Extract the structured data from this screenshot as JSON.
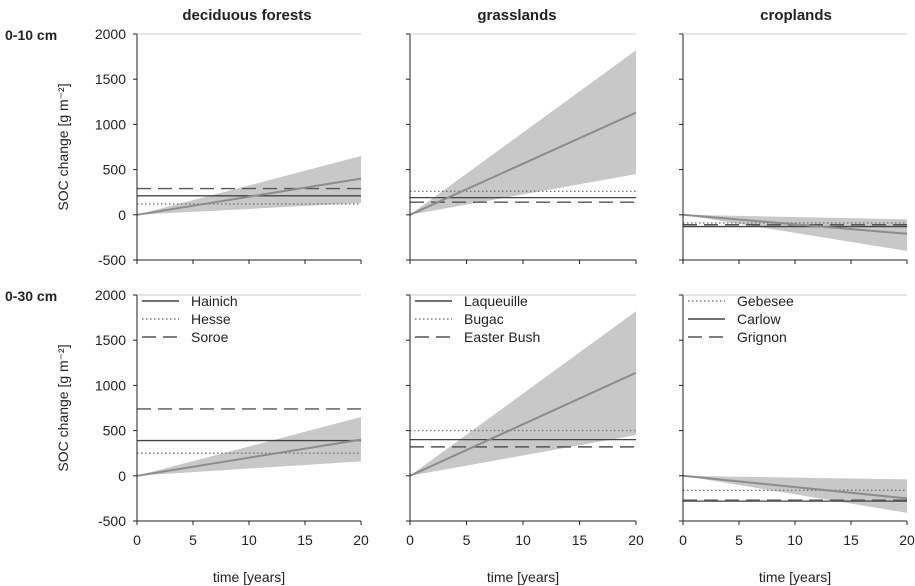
{
  "figure": {
    "column_titles": [
      "deciduous forests",
      "grasslands",
      "croplands"
    ],
    "row_labels": [
      "0-10 cm",
      "0-30 cm"
    ],
    "ylabel": "SOC change [g m⁻²]",
    "xlabel": "time [years]"
  },
  "colors": {
    "band": "#c8c8c8",
    "trend": "#8c8c8c",
    "solid": "#444444",
    "dashed": "#555555",
    "dotted": "#777777",
    "axis": "#222222"
  },
  "chart_data": [
    {
      "type": "line",
      "panel": "deciduous-forests-0-10",
      "title": "deciduous forests",
      "row": "0-10 cm",
      "xlabel": "",
      "ylabel": "SOC change [g m⁻²]",
      "xlim": [
        0,
        20
      ],
      "ylim": [
        -500,
        2000
      ],
      "xticks": [],
      "yticks": [
        -500,
        0,
        500,
        1000,
        1500,
        2000
      ],
      "trend": {
        "x": [
          0,
          20
        ],
        "y": [
          0,
          400
        ]
      },
      "band": {
        "x": [
          0,
          20
        ],
        "lower": [
          0,
          130
        ],
        "upper": [
          0,
          650
        ]
      },
      "sites": [
        {
          "name": "Hainich",
          "style": "solid",
          "value": 210
        },
        {
          "name": "Hesse",
          "style": "dotted",
          "value": 120
        },
        {
          "name": "Soroe",
          "style": "dashed",
          "value": 290
        }
      ],
      "legend": false
    },
    {
      "type": "line",
      "panel": "grasslands-0-10",
      "title": "grasslands",
      "row": "0-10 cm",
      "xlabel": "",
      "ylabel": "",
      "xlim": [
        0,
        20
      ],
      "ylim": [
        -500,
        2000
      ],
      "xticks": [],
      "yticks": [],
      "trend": {
        "x": [
          0,
          20
        ],
        "y": [
          0,
          1130
        ]
      },
      "band": {
        "x": [
          0,
          20
        ],
        "lower": [
          0,
          450
        ],
        "upper": [
          0,
          1820
        ]
      },
      "sites": [
        {
          "name": "Laqueuille",
          "style": "solid",
          "value": 190
        },
        {
          "name": "Bugac",
          "style": "dotted",
          "value": 260
        },
        {
          "name": "Easter Bush",
          "style": "dashed",
          "value": 140
        }
      ],
      "legend": false
    },
    {
      "type": "line",
      "panel": "croplands-0-10",
      "title": "croplands",
      "row": "0-10 cm",
      "xlabel": "",
      "ylabel": "",
      "xlim": [
        0,
        20
      ],
      "ylim": [
        -500,
        2000
      ],
      "xticks": [],
      "yticks": [],
      "trend": {
        "x": [
          0,
          20
        ],
        "y": [
          0,
          -210
        ]
      },
      "band": {
        "x": [
          0,
          20
        ],
        "lower": [
          0,
          -400
        ],
        "upper": [
          0,
          -50
        ]
      },
      "sites": [
        {
          "name": "Gebesee",
          "style": "dotted",
          "value": -90
        },
        {
          "name": "Carlow",
          "style": "solid",
          "value": -130
        },
        {
          "name": "Grignon",
          "style": "dashed",
          "value": -110
        }
      ],
      "legend": false
    },
    {
      "type": "line",
      "panel": "deciduous-forests-0-30",
      "title": "",
      "row": "0-30 cm",
      "xlabel": "time [years]",
      "ylabel": "SOC change [g m⁻²]",
      "xlim": [
        0,
        20
      ],
      "ylim": [
        -500,
        2000
      ],
      "xticks": [
        0,
        5,
        10,
        15,
        20
      ],
      "yticks": [
        -500,
        0,
        500,
        1000,
        1500,
        2000
      ],
      "trend": {
        "x": [
          0,
          20
        ],
        "y": [
          0,
          400
        ]
      },
      "band": {
        "x": [
          0,
          20
        ],
        "lower": [
          0,
          160
        ],
        "upper": [
          0,
          650
        ]
      },
      "sites": [
        {
          "name": "Hainich",
          "style": "solid",
          "value": 390
        },
        {
          "name": "Hesse",
          "style": "dotted",
          "value": 250
        },
        {
          "name": "Soroe",
          "style": "dashed",
          "value": 740
        }
      ],
      "legend": true
    },
    {
      "type": "line",
      "panel": "grasslands-0-30",
      "title": "",
      "row": "0-30 cm",
      "xlabel": "time [years]",
      "ylabel": "",
      "xlim": [
        0,
        20
      ],
      "ylim": [
        -500,
        2000
      ],
      "xticks": [
        0,
        5,
        10,
        15,
        20
      ],
      "yticks": [],
      "trend": {
        "x": [
          0,
          20
        ],
        "y": [
          0,
          1140
        ]
      },
      "band": {
        "x": [
          0,
          20
        ],
        "lower": [
          0,
          450
        ],
        "upper": [
          0,
          1820
        ]
      },
      "sites": [
        {
          "name": "Laqueuille",
          "style": "solid",
          "value": 400
        },
        {
          "name": "Bugac",
          "style": "dotted",
          "value": 500
        },
        {
          "name": "Easter Bush",
          "style": "dashed",
          "value": 320
        }
      ],
      "legend": true
    },
    {
      "type": "line",
      "panel": "croplands-0-30",
      "title": "",
      "row": "0-30 cm",
      "xlabel": "time [years]",
      "ylabel": "",
      "xlim": [
        0,
        20
      ],
      "ylim": [
        -500,
        2000
      ],
      "xticks": [
        0,
        5,
        10,
        15,
        20
      ],
      "yticks": [],
      "trend": {
        "x": [
          0,
          20
        ],
        "y": [
          0,
          -250
        ]
      },
      "band": {
        "x": [
          0,
          20
        ],
        "lower": [
          0,
          -410
        ],
        "upper": [
          0,
          -40
        ]
      },
      "sites": [
        {
          "name": "Gebesee",
          "style": "dotted",
          "value": -160
        },
        {
          "name": "Carlow",
          "style": "solid",
          "value": -280
        },
        {
          "name": "Grignon",
          "style": "dashed",
          "value": -270
        }
      ],
      "legend": true
    }
  ]
}
